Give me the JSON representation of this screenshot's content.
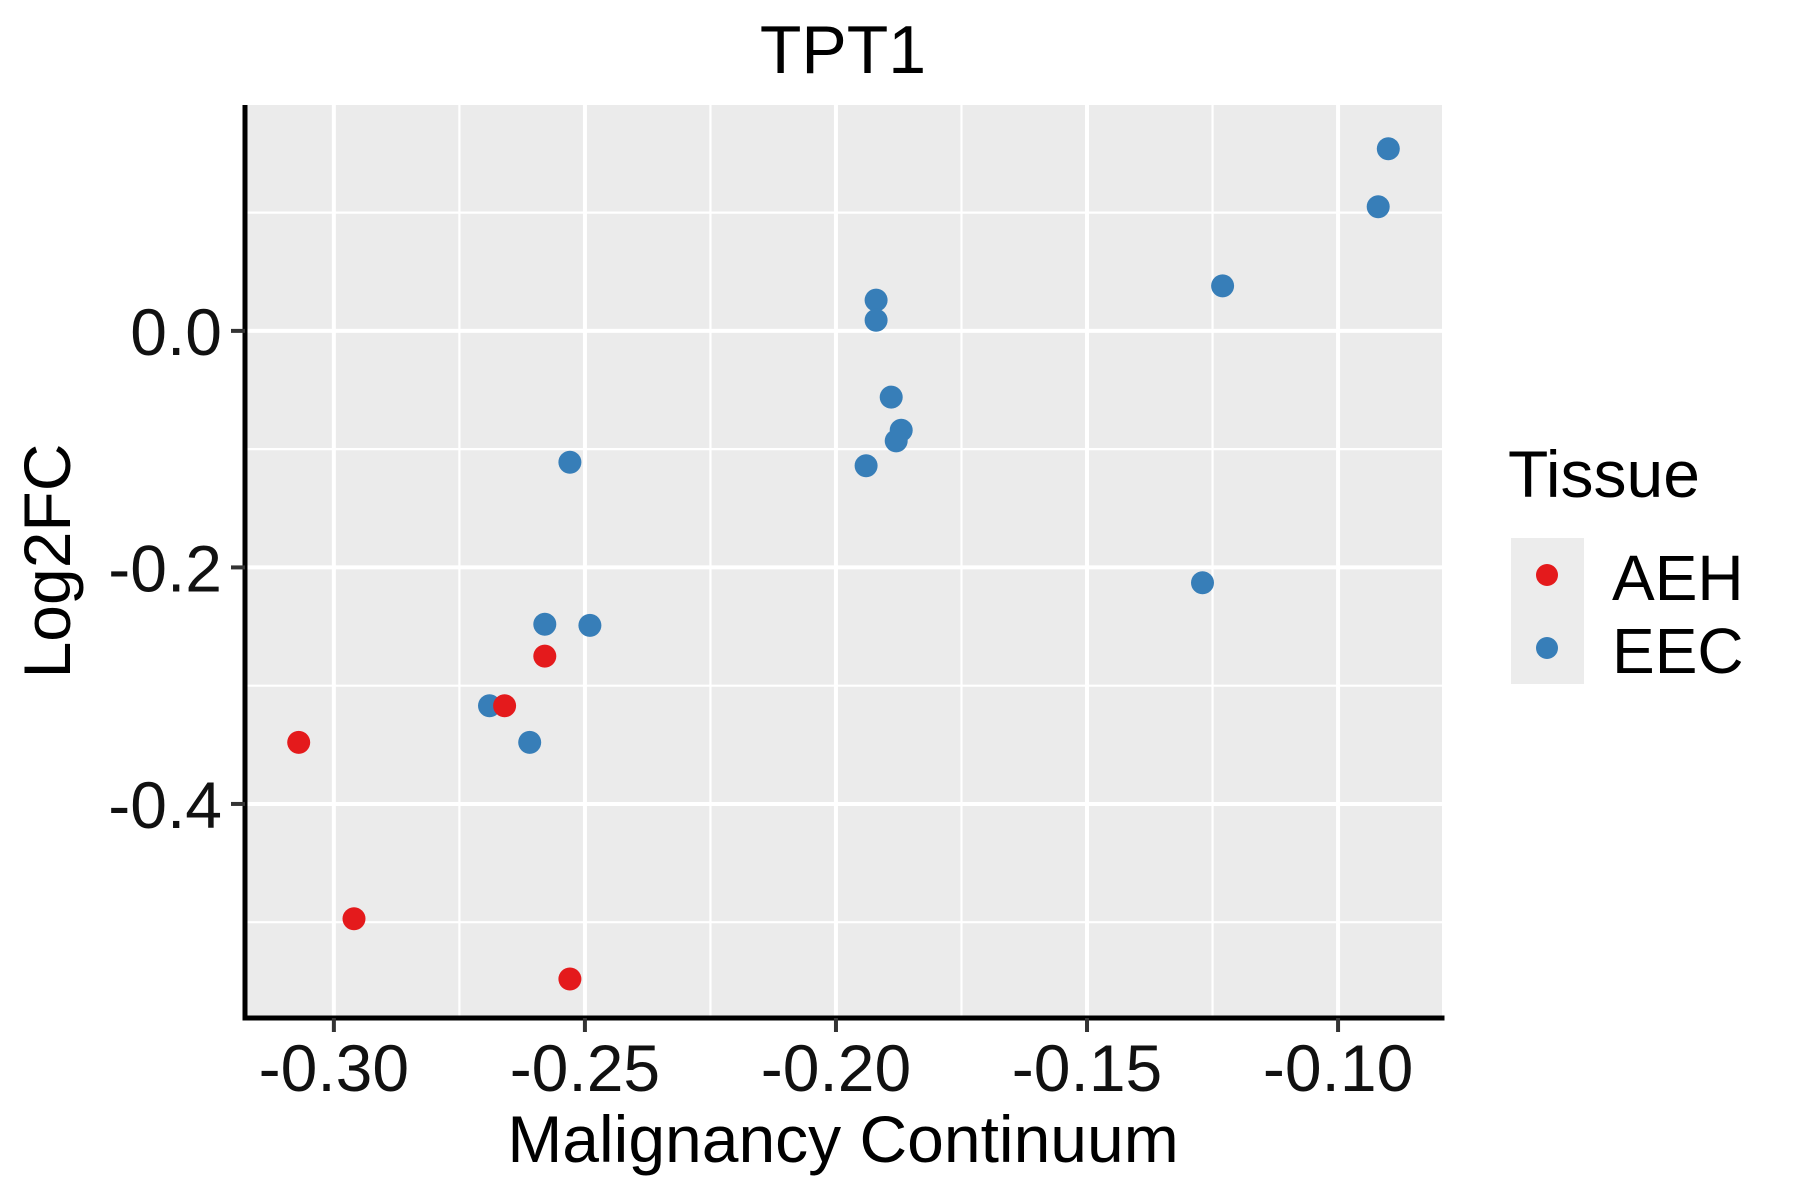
{
  "chart_data": {
    "type": "scatter",
    "title": "TPT1",
    "xlabel": "Malignancy Continuum",
    "ylabel": "Log2FC",
    "xlim": [
      -0.3177,
      -0.0793
    ],
    "ylim": [
      -0.581,
      0.191
    ],
    "grid": "on",
    "x_major_ticks": [
      {
        "v": -0.3,
        "label": "-0.30"
      },
      {
        "v": -0.25,
        "label": "-0.25"
      },
      {
        "v": -0.2,
        "label": "-0.20"
      },
      {
        "v": -0.15,
        "label": "-0.15"
      },
      {
        "v": -0.1,
        "label": "-0.10"
      }
    ],
    "x_minor_ticks": [
      -0.275,
      -0.225,
      -0.175,
      -0.125
    ],
    "y_major_ticks": [
      {
        "v": 0.0,
        "label": "0.0"
      },
      {
        "v": -0.2,
        "label": "-0.2"
      },
      {
        "v": -0.4,
        "label": "-0.4"
      }
    ],
    "y_minor_ticks": [
      0.1,
      -0.1,
      -0.3,
      -0.5
    ],
    "series": [
      {
        "name": "AEH",
        "color": "#e41a1c",
        "points": [
          [
            -0.307,
            -0.348
          ],
          [
            -0.296,
            -0.497
          ],
          [
            -0.266,
            -0.317
          ],
          [
            -0.258,
            -0.275
          ],
          [
            -0.253,
            -0.548
          ]
        ]
      },
      {
        "name": "EEC",
        "color": "#377eb8",
        "points": [
          [
            -0.269,
            -0.317
          ],
          [
            -0.261,
            -0.348
          ],
          [
            -0.258,
            -0.248
          ],
          [
            -0.249,
            -0.249
          ],
          [
            -0.253,
            -0.111
          ],
          [
            -0.192,
            0.026
          ],
          [
            -0.192,
            0.009
          ],
          [
            -0.189,
            -0.056
          ],
          [
            -0.187,
            -0.084
          ],
          [
            -0.188,
            -0.093
          ],
          [
            -0.194,
            -0.114
          ],
          [
            -0.123,
            0.038
          ],
          [
            -0.127,
            -0.213
          ],
          [
            -0.09,
            0.154
          ],
          [
            -0.092,
            0.105
          ]
        ]
      }
    ],
    "legend": {
      "title": "Tissue",
      "position": "right",
      "entries": [
        "AEH",
        "EEC"
      ]
    },
    "colors": {
      "panel_background": "#ebebeb",
      "grid": "#ffffff",
      "axis_line": "#000000",
      "tick_mark": "#333333",
      "text": "#000000",
      "legend_key_background": "#ececec"
    }
  }
}
